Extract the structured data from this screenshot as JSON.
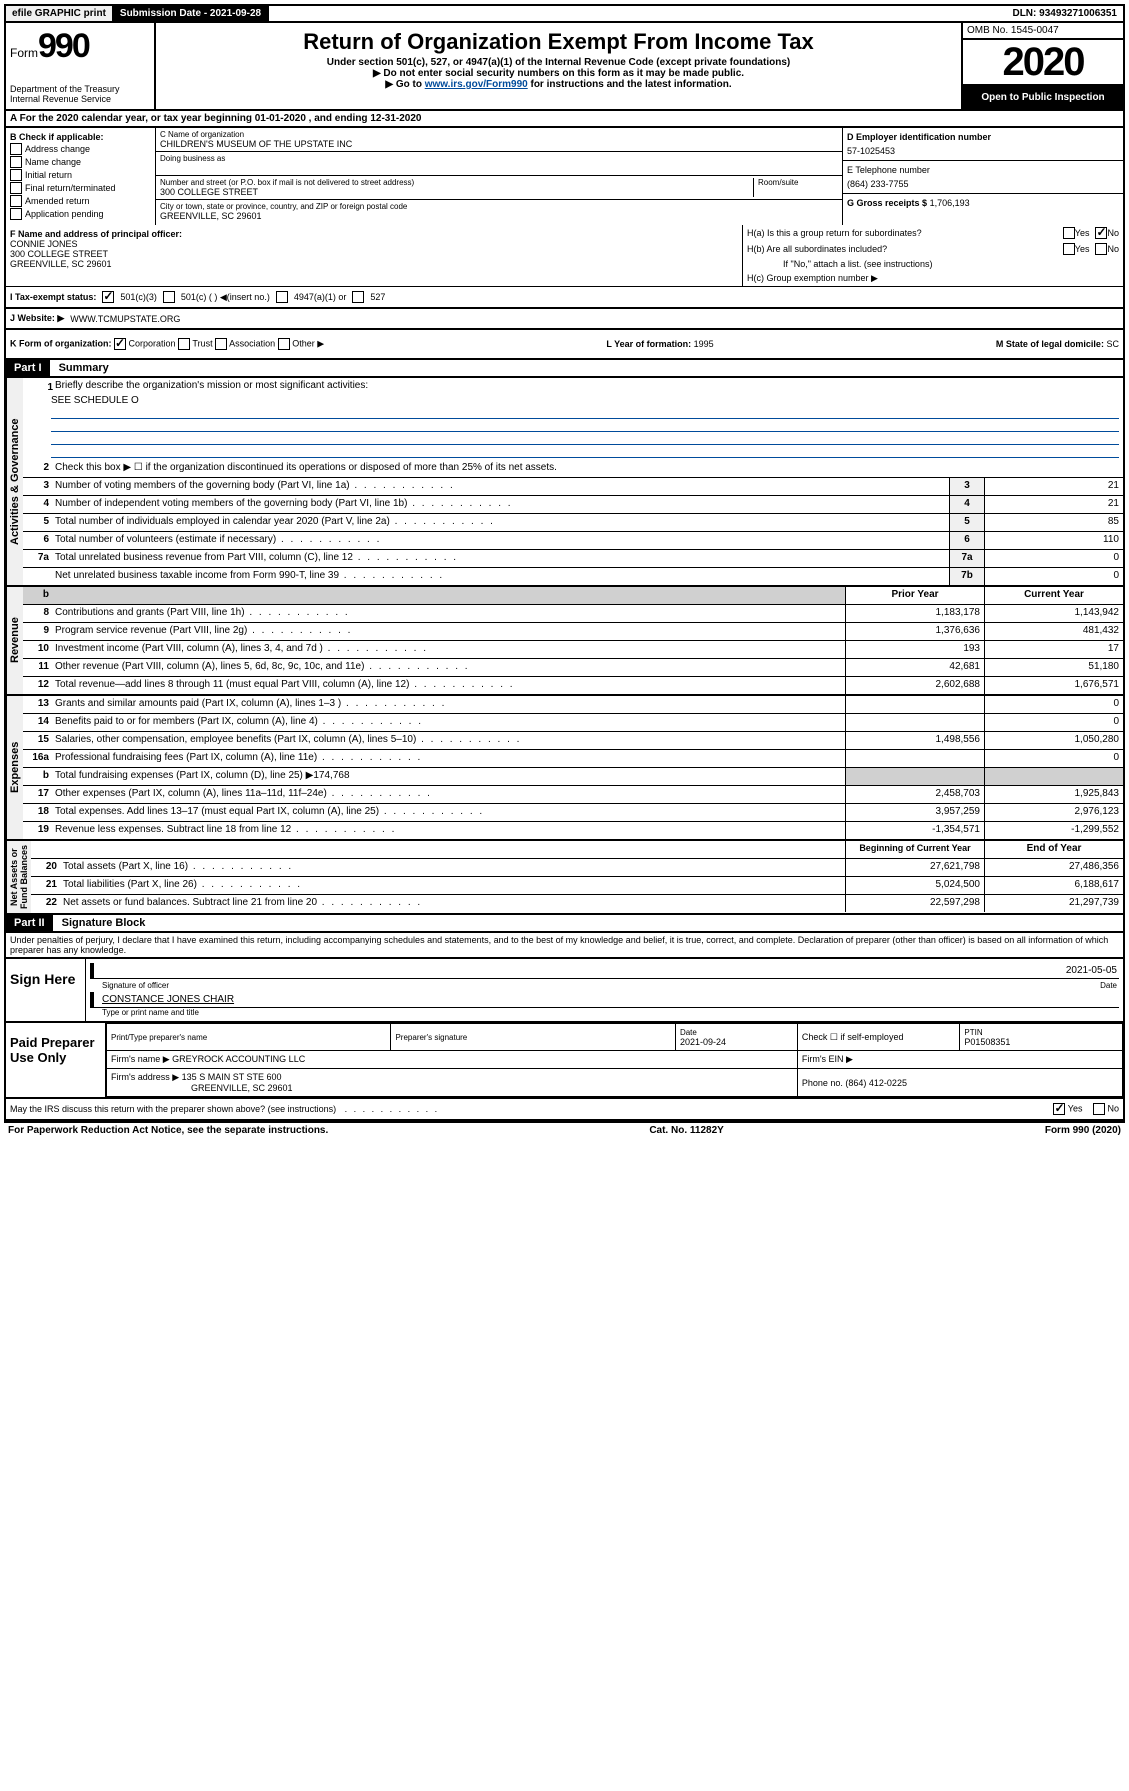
{
  "top_bar": {
    "efile": "efile GRAPHIC print",
    "submission": "Submission Date - 2021-09-28",
    "dln": "DLN: 93493271006351"
  },
  "header": {
    "form_prefix": "Form",
    "form_number": "990",
    "dept": "Department of the Treasury\nInternal Revenue Service",
    "title": "Return of Organization Exempt From Income Tax",
    "subtitle": "Under section 501(c), 527, or 4947(a)(1) of the Internal Revenue Code (except private foundations)",
    "warn": "▶ Do not enter social security numbers on this form as it may be made public.",
    "goto": "▶ Go to www.irs.gov/Form990 for instructions and the latest information.",
    "goto_link": "www.irs.gov/Form990",
    "omb": "OMB No. 1545-0047",
    "year": "2020",
    "open_public": "Open to Public Inspection"
  },
  "period": "A For the 2020 calendar year, or tax year beginning 01-01-2020   , and ending 12-31-2020",
  "section_b": {
    "label": "B Check if applicable:",
    "items": [
      "Address change",
      "Name change",
      "Initial return",
      "Final return/terminated",
      "Amended return",
      "Application pending"
    ]
  },
  "section_c": {
    "name_label": "C Name of organization",
    "name": "CHILDREN'S MUSEUM OF THE UPSTATE INC",
    "dba_label": "Doing business as",
    "addr_label": "Number and street (or P.O. box if mail is not delivered to street address)",
    "suite_label": "Room/suite",
    "addr": "300 COLLEGE STREET",
    "city_label": "City or town, state or province, country, and ZIP or foreign postal code",
    "city": "GREENVILLE, SC  29601"
  },
  "section_d": {
    "label": "D Employer identification number",
    "ein": "57-1025453"
  },
  "section_e": {
    "label": "E Telephone number",
    "phone": "(864) 233-7755"
  },
  "section_g": {
    "label": "G Gross receipts $",
    "amount": "1,706,193"
  },
  "section_f": {
    "label": "F Name and address of principal officer:",
    "name": "CONNIE JONES",
    "addr1": "300 COLLEGE STREET",
    "addr2": "GREENVILLE, SC  29601"
  },
  "section_h": {
    "ha": "H(a)  Is this a group return for subordinates?",
    "hb": "H(b)  Are all subordinates included?",
    "hb_note": "If \"No,\" attach a list. (see instructions)",
    "hc": "H(c)  Group exemption number ▶"
  },
  "tax_status": {
    "label": "I    Tax-exempt status:",
    "c3": "501(c)(3)",
    "c_insert": "501(c) (   ) ◀(insert no.)",
    "a1": "4947(a)(1) or",
    "s527": "527"
  },
  "website": {
    "label": "J    Website: ▶",
    "url": "WWW.TCMUPSTATE.ORG"
  },
  "k_org": {
    "label": "K Form of organization:",
    "corp": "Corporation",
    "trust": "Trust",
    "assoc": "Association",
    "other": "Other ▶",
    "l_label": "L Year of formation:",
    "l_val": "1995",
    "m_label": "M State of legal domicile:",
    "m_val": "SC"
  },
  "part1": {
    "header": "Part I",
    "title": "Summary",
    "line1": "Briefly describe the organization's mission or most significant activities:",
    "line1_val": "SEE SCHEDULE O",
    "line2": "Check this box ▶ ☐  if the organization discontinued its operations or disposed of more than 25% of its net assets.",
    "rows": [
      {
        "num": "3",
        "desc": "Number of voting members of the governing body (Part VI, line 1a)",
        "box": "3",
        "val": "21"
      },
      {
        "num": "4",
        "desc": "Number of independent voting members of the governing body (Part VI, line 1b)",
        "box": "4",
        "val": "21"
      },
      {
        "num": "5",
        "desc": "Total number of individuals employed in calendar year 2020 (Part V, line 2a)",
        "box": "5",
        "val": "85"
      },
      {
        "num": "6",
        "desc": "Total number of volunteers (estimate if necessary)",
        "box": "6",
        "val": "110"
      },
      {
        "num": "7a",
        "desc": "Total unrelated business revenue from Part VIII, column (C), line 12",
        "box": "7a",
        "val": "0"
      },
      {
        "num": "",
        "desc": "Net unrelated business taxable income from Form 990-T, line 39",
        "box": "7b",
        "val": "0"
      }
    ],
    "prior_label": "Prior Year",
    "current_label": "Current Year",
    "revenue_rows": [
      {
        "num": "8",
        "desc": "Contributions and grants (Part VIII, line 1h)",
        "prior": "1,183,178",
        "curr": "1,143,942"
      },
      {
        "num": "9",
        "desc": "Program service revenue (Part VIII, line 2g)",
        "prior": "1,376,636",
        "curr": "481,432"
      },
      {
        "num": "10",
        "desc": "Investment income (Part VIII, column (A), lines 3, 4, and 7d )",
        "prior": "193",
        "curr": "17"
      },
      {
        "num": "11",
        "desc": "Other revenue (Part VIII, column (A), lines 5, 6d, 8c, 9c, 10c, and 11e)",
        "prior": "42,681",
        "curr": "51,180"
      },
      {
        "num": "12",
        "desc": "Total revenue—add lines 8 through 11 (must equal Part VIII, column (A), line 12)",
        "prior": "2,602,688",
        "curr": "1,676,571"
      }
    ],
    "expense_rows": [
      {
        "num": "13",
        "desc": "Grants and similar amounts paid (Part IX, column (A), lines 1–3 )",
        "prior": "",
        "curr": "0"
      },
      {
        "num": "14",
        "desc": "Benefits paid to or for members (Part IX, column (A), line 4)",
        "prior": "",
        "curr": "0"
      },
      {
        "num": "15",
        "desc": "Salaries, other compensation, employee benefits (Part IX, column (A), lines 5–10)",
        "prior": "1,498,556",
        "curr": "1,050,280"
      },
      {
        "num": "16a",
        "desc": "Professional fundraising fees (Part IX, column (A), line 11e)",
        "prior": "",
        "curr": "0"
      },
      {
        "num": "b",
        "desc": "Total fundraising expenses (Part IX, column (D), line 25) ▶174,768",
        "prior": "shaded",
        "curr": "shaded"
      },
      {
        "num": "17",
        "desc": "Other expenses (Part IX, column (A), lines 11a–11d, 11f–24e)",
        "prior": "2,458,703",
        "curr": "1,925,843"
      },
      {
        "num": "18",
        "desc": "Total expenses. Add lines 13–17 (must equal Part IX, column (A), line 25)",
        "prior": "3,957,259",
        "curr": "2,976,123"
      },
      {
        "num": "19",
        "desc": "Revenue less expenses. Subtract line 18 from line 12",
        "prior": "-1,354,571",
        "curr": "-1,299,552"
      }
    ],
    "begin_label": "Beginning of Current Year",
    "end_label": "End of Year",
    "net_rows": [
      {
        "num": "20",
        "desc": "Total assets (Part X, line 16)",
        "prior": "27,621,798",
        "curr": "27,486,356"
      },
      {
        "num": "21",
        "desc": "Total liabilities (Part X, line 26)",
        "prior": "5,024,500",
        "curr": "6,188,617"
      },
      {
        "num": "22",
        "desc": "Net assets or fund balances. Subtract line 21 from line 20",
        "prior": "22,597,298",
        "curr": "21,297,739"
      }
    ]
  },
  "part2": {
    "header": "Part II",
    "title": "Signature Block",
    "perjury": "Under penalties of perjury, I declare that I have examined this return, including accompanying schedules and statements, and to the best of my knowledge and belief, it is true, correct, and complete. Declaration of preparer (other than officer) is based on all information of which preparer has any knowledge.",
    "sign_here": "Sign Here",
    "sig_officer": "Signature of officer",
    "sig_date": "2021-05-05",
    "date_label": "Date",
    "officer_name": "CONSTANCE JONES CHAIR",
    "type_name": "Type or print name and title",
    "paid_prep": "Paid Preparer Use Only",
    "print_label": "Print/Type preparer's name",
    "prep_sig_label": "Preparer's signature",
    "prep_date_label": "Date",
    "prep_date": "2021-09-24",
    "check_if": "Check ☐ if self-employed",
    "ptin_label": "PTIN",
    "ptin": "P01508351",
    "firm_name_label": "Firm's name    ▶",
    "firm_name": "GREYROCK ACCOUNTING LLC",
    "firm_ein_label": "Firm's EIN ▶",
    "firm_addr_label": "Firm's address ▶",
    "firm_addr": "135 S MAIN ST STE 600",
    "firm_city": "GREENVILLE, SC  29601",
    "phone_label": "Phone no.",
    "phone": "(864) 412-0225",
    "discuss": "May the IRS discuss this return with the preparer shown above? (see instructions)"
  },
  "footer": {
    "paperwork": "For Paperwork Reduction Act Notice, see the separate instructions.",
    "cat": "Cat. No. 11282Y",
    "form": "Form 990 (2020)"
  }
}
